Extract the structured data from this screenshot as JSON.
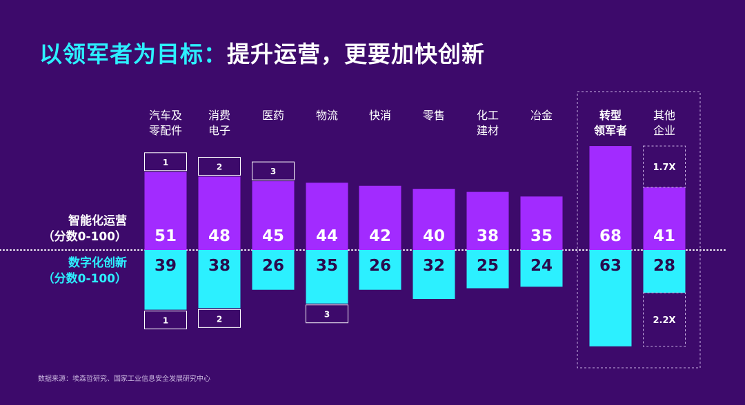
{
  "title": {
    "highlight": "以领军者为目标：",
    "rest": "提升运营，更要加快创新"
  },
  "source": "数据来源：埃森哲研究、国家工业信息安全发展研究中心",
  "colors": {
    "background": "#3d0a6b",
    "operations": "#a22bff",
    "innovation": "#2cf0ff",
    "title_accent": "#2cf0ff"
  },
  "chart_data": {
    "type": "bar",
    "layout": "diverging",
    "row_labels": {
      "top": [
        "智能化运营",
        "（分数0-100）"
      ],
      "bottom": [
        "数字化创新",
        "（分数0-100）"
      ]
    },
    "categories": [
      [
        "汽车及",
        "零配件"
      ],
      [
        "消费",
        "电子"
      ],
      [
        "医药"
      ],
      [
        "物流"
      ],
      [
        "快消"
      ],
      [
        "零售"
      ],
      [
        "化工",
        "建材"
      ],
      [
        "冶金"
      ],
      [
        "转型",
        "领军者"
      ],
      [
        "其他",
        "企业"
      ]
    ],
    "highlight_categories": [
      8
    ],
    "series": [
      {
        "name": "智能化运营",
        "values": [
          51,
          48,
          45,
          44,
          42,
          40,
          38,
          35,
          68,
          41
        ],
        "rank_boxes": {
          "0": "1",
          "1": "2",
          "2": "3"
        }
      },
      {
        "name": "数字化创新",
        "values": [
          39,
          38,
          26,
          35,
          26,
          32,
          25,
          24,
          63,
          28
        ],
        "rank_boxes": {
          "0": "1",
          "1": "2",
          "3": "3"
        }
      }
    ],
    "multipliers": {
      "top": "1.7X",
      "bottom": "2.2X"
    },
    "ylim": [
      0,
      68
    ]
  }
}
